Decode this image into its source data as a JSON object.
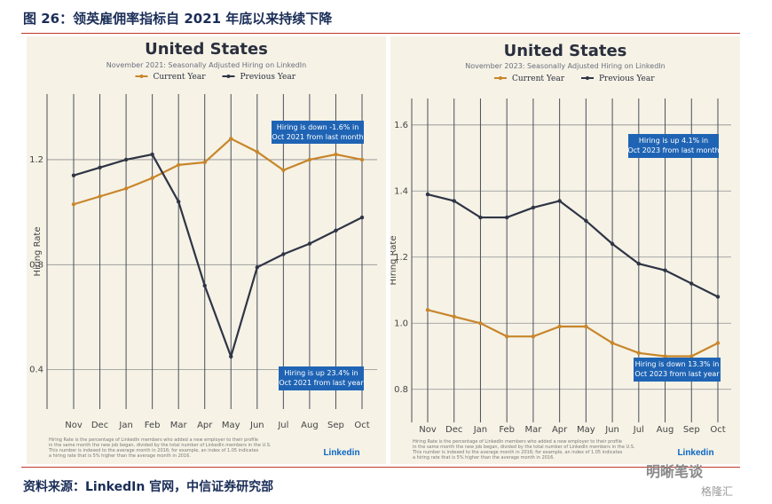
{
  "figure": {
    "title": "图 26：领英雇佣率指标自 2021 年底以来持续下降",
    "source": "资料来源：LinkedIn 官网，中信证券研究部",
    "watermark": "明晰笔谈",
    "watermark2": "格隆汇"
  },
  "colors": {
    "current": "#c8862b",
    "previous": "#2f3545",
    "annotation_bg": "#1f64b4",
    "panel_bg": "#f6f2e6",
    "grid": "#4a4f5a"
  },
  "chart_data": [
    {
      "type": "line",
      "title": "United States",
      "subtitle": "November 2021: Seasonally Adjusted Hiring on LinkedIn",
      "ylabel": "Hiring Rate",
      "ylim": [
        0.25,
        1.45
      ],
      "yticks": [
        "0.4",
        "0.8",
        "1.2"
      ],
      "ytick_values": [
        0.4,
        0.8,
        1.2
      ],
      "categories": [
        "Nov",
        "Dec",
        "Jan",
        "Feb",
        "Mar",
        "Apr",
        "May",
        "Jun",
        "Jul",
        "Aug",
        "Sep",
        "Oct"
      ],
      "legend": [
        "Current Year",
        "Previous Year"
      ],
      "series": [
        {
          "name": "Current Year",
          "values": [
            1.03,
            1.06,
            1.09,
            1.13,
            1.18,
            1.19,
            1.28,
            1.23,
            1.16,
            1.2,
            1.22,
            1.2
          ]
        },
        {
          "name": "Previous Year",
          "values": [
            1.14,
            1.17,
            1.2,
            1.22,
            1.04,
            0.72,
            0.45,
            0.79,
            0.84,
            0.88,
            0.93,
            0.98
          ]
        }
      ],
      "annotations": [
        {
          "line1": "Hiring is down -1.6% in",
          "line2": "Oct 2021 from last month"
        },
        {
          "line1": "Hiring is up 23.4% in",
          "line2": "Oct 2021 from last year"
        }
      ],
      "footnote": [
        "Hiring Rate is the percentage of LinkedIn members who added a new employer to their profile",
        "in the same month the new job began, divided by the total number of LinkedIn members in the U.S.",
        "This number is indexed to the average month in 2016; for example, an index of 1.05 indicates",
        "a hiring rate that is 5% higher than the average month in 2016."
      ],
      "logo": "Linkedin"
    },
    {
      "type": "line",
      "title": "United States",
      "subtitle": "November 2023: Seasonally Adjusted Hiring on LinkedIn",
      "ylabel": "Hiring Rate",
      "ylim": [
        0.7,
        1.68
      ],
      "yticks": [
        "0.8",
        "1.0",
        "1.2",
        "1.4",
        "1.6"
      ],
      "ytick_values": [
        0.8,
        1.0,
        1.2,
        1.4,
        1.6
      ],
      "categories": [
        "Nov",
        "Dec",
        "Jan",
        "Feb",
        "Mar",
        "Apr",
        "May",
        "Jun",
        "Jul",
        "Aug",
        "Sep",
        "Oct"
      ],
      "legend": [
        "Current Year",
        "Previous Year"
      ],
      "series": [
        {
          "name": "Current Year",
          "values": [
            1.04,
            1.02,
            1.0,
            0.96,
            0.96,
            0.99,
            0.99,
            0.94,
            0.91,
            0.9,
            0.9,
            0.94
          ]
        },
        {
          "name": "Previous Year",
          "values": [
            1.39,
            1.37,
            1.32,
            1.32,
            1.35,
            1.37,
            1.31,
            1.24,
            1.18,
            1.16,
            1.12,
            1.08
          ]
        }
      ],
      "annotations": [
        {
          "line1": "Hiring is up 4.1% in",
          "line2": "Oct 2023 from last month"
        },
        {
          "line1": "Hiring is down 13.3% in",
          "line2": "Oct 2023 from last year"
        }
      ],
      "footnote": [
        "Hiring Rate is the percentage of LinkedIn members who added a new employer to their profile",
        "in the same month the new job began, divided by the total number of LinkedIn members in the U.S.",
        "This number is indexed to the average month in 2016; for example, an index of 1.05 indicates",
        "a hiring rate that is 5% higher than the average month in 2016."
      ],
      "logo": "Linkedin"
    }
  ]
}
